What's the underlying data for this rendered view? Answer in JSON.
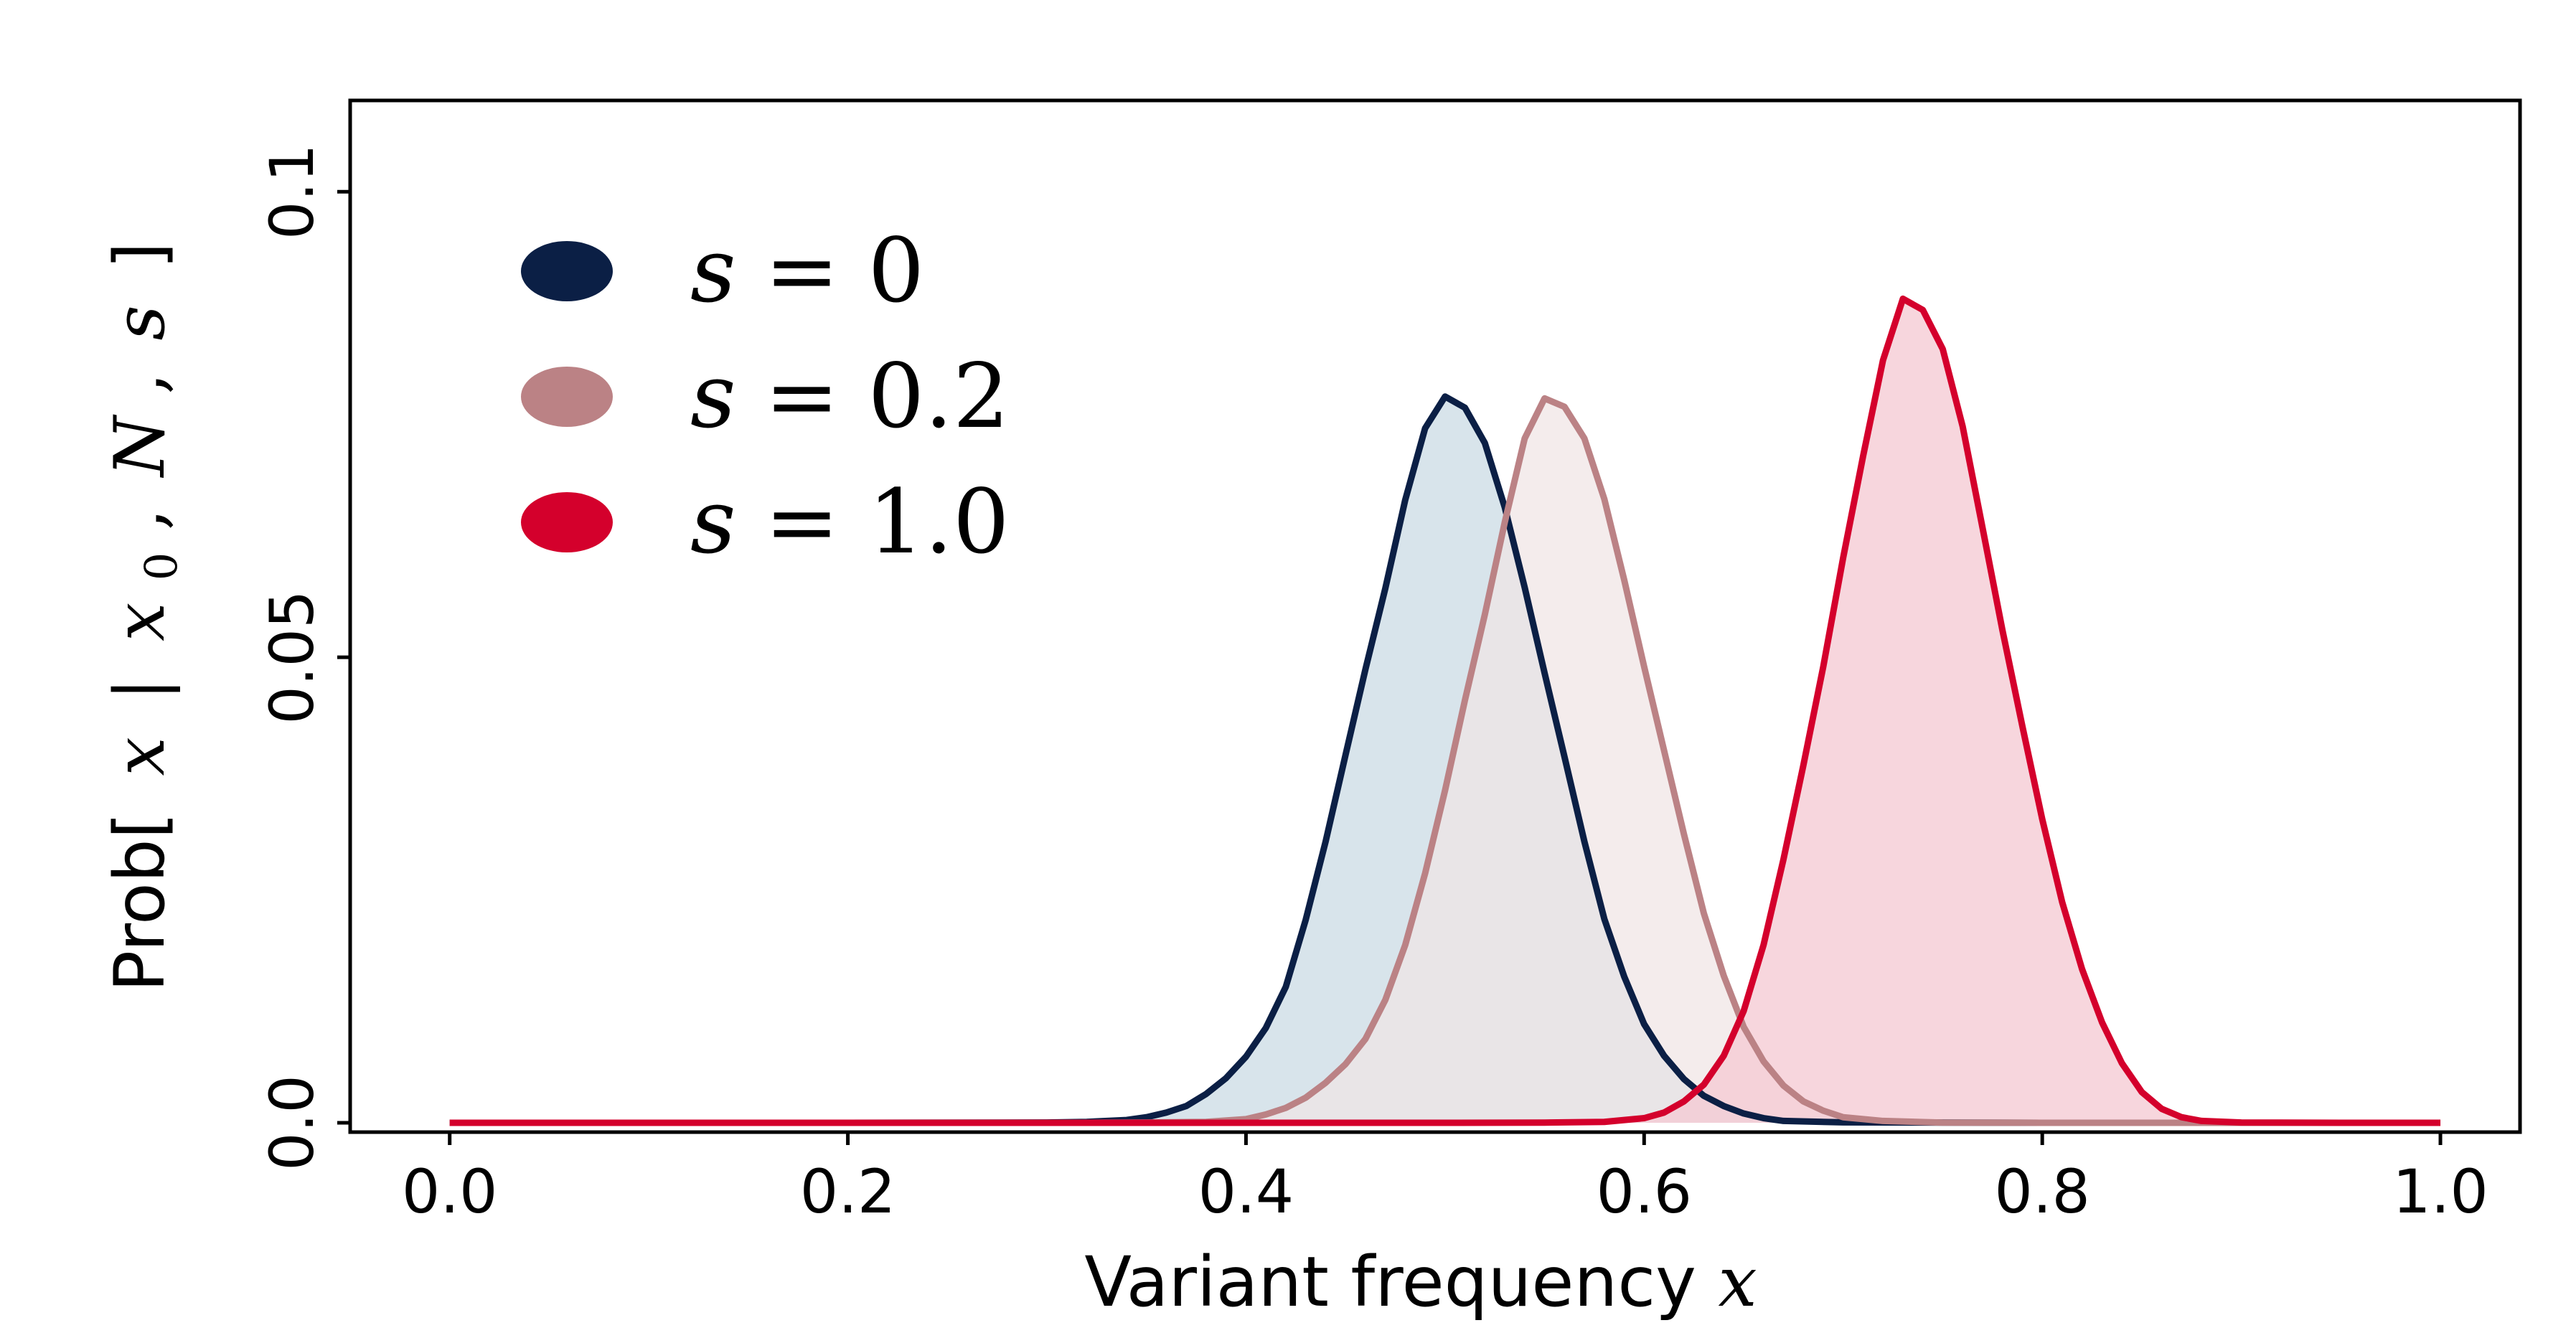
{
  "chart_data": {
    "type": "area",
    "xlabel": "Variant frequency",
    "xlabel_var": "x",
    "ylabel": "Prob[ x | x0, N, s ]",
    "ylabel_prefix": "Prob[",
    "ylabel_var_x": "x",
    "ylabel_bar": "|",
    "ylabel_var_x0": "x",
    "ylabel_sub0": "0",
    "ylabel_sep": ",",
    "ylabel_var_N": "N",
    "ylabel_var_s": "s",
    "ylabel_suffix": "]",
    "xlim": [
      -0.05,
      1.04
    ],
    "ylim": [
      -0.001,
      0.1098
    ],
    "xticks": [
      0.0,
      0.2,
      0.4,
      0.6,
      0.8,
      1.0
    ],
    "xtick_labels": [
      "0.0",
      "0.2",
      "0.4",
      "0.6",
      "0.8",
      "1.0"
    ],
    "yticks": [
      0.0,
      0.05,
      0.1
    ],
    "ytick_labels": [
      "0.0",
      "0.05",
      "0.1"
    ],
    "legend_position": "top-left",
    "grid": false,
    "series": [
      {
        "name": "s = 0",
        "legend_var": "s",
        "legend_eq": "=",
        "legend_value": "0",
        "color": "#0b1f45",
        "fill": "#cddde5",
        "points": [
          [
            0.0,
            0.0
          ],
          [
            0.1,
            0.0
          ],
          [
            0.2,
            0.0
          ],
          [
            0.3,
            3e-05
          ],
          [
            0.32,
            0.0001
          ],
          [
            0.34,
            0.0003
          ],
          [
            0.35,
            0.0006
          ],
          [
            0.36,
            0.0011
          ],
          [
            0.37,
            0.0018
          ],
          [
            0.38,
            0.0031
          ],
          [
            0.39,
            0.0048
          ],
          [
            0.4,
            0.0071
          ],
          [
            0.41,
            0.0102
          ],
          [
            0.42,
            0.0146
          ],
          [
            0.43,
            0.0218
          ],
          [
            0.44,
            0.0302
          ],
          [
            0.45,
            0.0395
          ],
          [
            0.46,
            0.0487
          ],
          [
            0.47,
            0.0574
          ],
          [
            0.48,
            0.0669
          ],
          [
            0.49,
            0.0746
          ],
          [
            0.5,
            0.078
          ],
          [
            0.51,
            0.0768
          ],
          [
            0.52,
            0.073
          ],
          [
            0.53,
            0.0661
          ],
          [
            0.54,
            0.0575
          ],
          [
            0.55,
            0.0483
          ],
          [
            0.56,
            0.0393
          ],
          [
            0.57,
            0.0302
          ],
          [
            0.58,
            0.0219
          ],
          [
            0.59,
            0.0157
          ],
          [
            0.6,
            0.0106
          ],
          [
            0.61,
            0.0072
          ],
          [
            0.62,
            0.0047
          ],
          [
            0.63,
            0.0029
          ],
          [
            0.64,
            0.0018
          ],
          [
            0.65,
            0.001
          ],
          [
            0.66,
            0.0005
          ],
          [
            0.67,
            0.0002
          ],
          [
            0.7,
            5e-05
          ],
          [
            0.8,
            0.0
          ],
          [
            0.9,
            0.0
          ],
          [
            1.0,
            0.0
          ]
        ]
      },
      {
        "name": "s = 0.2",
        "legend_var": "s",
        "legend_eq": "=",
        "legend_value": "0.2",
        "color": "#bb8285",
        "fill": "#f0e4e5",
        "points": [
          [
            0.0,
            0.0
          ],
          [
            0.1,
            0.0
          ],
          [
            0.2,
            0.0
          ],
          [
            0.3,
            0.0
          ],
          [
            0.35,
            3e-05
          ],
          [
            0.38,
            0.0001
          ],
          [
            0.4,
            0.0004
          ],
          [
            0.41,
            0.0009
          ],
          [
            0.42,
            0.0016
          ],
          [
            0.43,
            0.0027
          ],
          [
            0.44,
            0.0043
          ],
          [
            0.45,
            0.0063
          ],
          [
            0.46,
            0.009
          ],
          [
            0.47,
            0.0132
          ],
          [
            0.48,
            0.0191
          ],
          [
            0.49,
            0.0268
          ],
          [
            0.5,
            0.0357
          ],
          [
            0.51,
            0.0454
          ],
          [
            0.52,
            0.0546
          ],
          [
            0.53,
            0.0645
          ],
          [
            0.54,
            0.0735
          ],
          [
            0.55,
            0.0778
          ],
          [
            0.56,
            0.0769
          ],
          [
            0.57,
            0.0735
          ],
          [
            0.58,
            0.067
          ],
          [
            0.59,
            0.0583
          ],
          [
            0.6,
            0.049
          ],
          [
            0.61,
            0.04
          ],
          [
            0.62,
            0.031
          ],
          [
            0.63,
            0.0225
          ],
          [
            0.64,
            0.0158
          ],
          [
            0.65,
            0.0103
          ],
          [
            0.66,
            0.0066
          ],
          [
            0.67,
            0.004
          ],
          [
            0.68,
            0.0023
          ],
          [
            0.69,
            0.0013
          ],
          [
            0.7,
            0.0006
          ],
          [
            0.72,
            0.0002
          ],
          [
            0.75,
            2e-05
          ],
          [
            0.8,
            0.0
          ],
          [
            0.9,
            0.0
          ],
          [
            1.0,
            0.0
          ]
        ]
      },
      {
        "name": "s = 1.0",
        "legend_var": "s",
        "legend_eq": "=",
        "legend_value": "1.0",
        "color": "#d4002c",
        "fill": "#f5cad4",
        "points": [
          [
            0.0,
            0.0
          ],
          [
            0.1,
            0.0
          ],
          [
            0.2,
            0.0
          ],
          [
            0.3,
            0.0
          ],
          [
            0.4,
            0.0
          ],
          [
            0.5,
            0.0
          ],
          [
            0.55,
            2e-05
          ],
          [
            0.58,
            0.0001
          ],
          [
            0.6,
            0.0005
          ],
          [
            0.61,
            0.0011
          ],
          [
            0.62,
            0.0023
          ],
          [
            0.63,
            0.0041
          ],
          [
            0.64,
            0.0072
          ],
          [
            0.65,
            0.012
          ],
          [
            0.66,
            0.0191
          ],
          [
            0.67,
            0.0283
          ],
          [
            0.68,
            0.0384
          ],
          [
            0.69,
            0.049
          ],
          [
            0.7,
            0.0607
          ],
          [
            0.71,
            0.0716
          ],
          [
            0.72,
            0.0819
          ],
          [
            0.73,
            0.0885
          ],
          [
            0.74,
            0.0873
          ],
          [
            0.75,
            0.0831
          ],
          [
            0.76,
            0.0748
          ],
          [
            0.77,
            0.0639
          ],
          [
            0.78,
            0.0529
          ],
          [
            0.79,
            0.0426
          ],
          [
            0.8,
            0.0326
          ],
          [
            0.81,
            0.0237
          ],
          [
            0.82,
            0.0165
          ],
          [
            0.83,
            0.0108
          ],
          [
            0.84,
            0.0064
          ],
          [
            0.85,
            0.0033
          ],
          [
            0.86,
            0.0015
          ],
          [
            0.87,
            0.0006
          ],
          [
            0.88,
            0.0002
          ],
          [
            0.9,
            3e-05
          ],
          [
            0.95,
            0.0
          ],
          [
            1.0,
            0.0
          ]
        ]
      }
    ]
  }
}
